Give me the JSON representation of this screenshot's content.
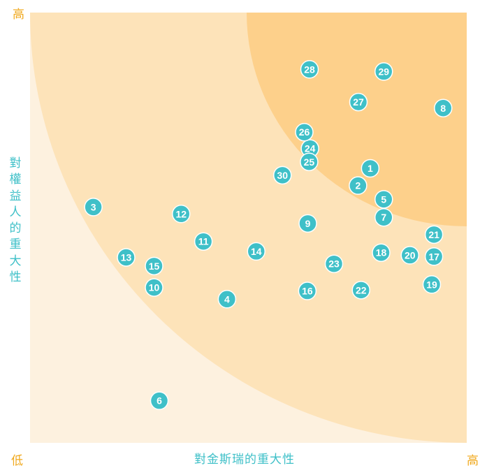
{
  "chart_data": {
    "type": "scatter",
    "xlabel": "對金斯瑞的重大性",
    "ylabel": "對權益人的重大性",
    "x_low_label": "低",
    "x_high_label": "高",
    "y_high_label": "高",
    "xlim": [
      0,
      100
    ],
    "ylim": [
      0,
      100
    ],
    "grid": false,
    "colors": {
      "zone_low": "#fdf1df",
      "zone_mid": "#fde3b9",
      "zone_high": "#fdd08b",
      "point": "#3fc0c8",
      "point_text": "#ffffff",
      "axis_end": "#f0a81c",
      "axis_label": "#3fc0c8"
    },
    "points": [
      {
        "label": "1",
        "x": 77.9,
        "y": 63.8
      },
      {
        "label": "2",
        "x": 75.1,
        "y": 59.8
      },
      {
        "label": "3",
        "x": 14.5,
        "y": 54.8
      },
      {
        "label": "4",
        "x": 45.1,
        "y": 33.4
      },
      {
        "label": "5",
        "x": 81.0,
        "y": 56.6
      },
      {
        "label": "6",
        "x": 29.6,
        "y": 9.8
      },
      {
        "label": "7",
        "x": 81.0,
        "y": 52.4
      },
      {
        "label": "8",
        "x": 94.6,
        "y": 77.8
      },
      {
        "label": "9",
        "x": 63.6,
        "y": 51.0
      },
      {
        "label": "10",
        "x": 28.4,
        "y": 36.1
      },
      {
        "label": "11",
        "x": 39.7,
        "y": 46.8
      },
      {
        "label": "12",
        "x": 34.6,
        "y": 53.2
      },
      {
        "label": "13",
        "x": 22.0,
        "y": 43.1
      },
      {
        "label": "14",
        "x": 51.8,
        "y": 44.5
      },
      {
        "label": "15",
        "x": 28.4,
        "y": 41.1
      },
      {
        "label": "16",
        "x": 63.5,
        "y": 35.3
      },
      {
        "label": "17",
        "x": 92.5,
        "y": 43.3
      },
      {
        "label": "18",
        "x": 80.4,
        "y": 44.2
      },
      {
        "label": "19",
        "x": 92.0,
        "y": 36.8
      },
      {
        "label": "20",
        "x": 87.0,
        "y": 43.6
      },
      {
        "label": "21",
        "x": 92.5,
        "y": 48.4
      },
      {
        "label": "22",
        "x": 75.8,
        "y": 35.5
      },
      {
        "label": "23",
        "x": 69.6,
        "y": 41.6
      },
      {
        "label": "24",
        "x": 64.1,
        "y": 68.4
      },
      {
        "label": "25",
        "x": 63.9,
        "y": 65.3
      },
      {
        "label": "26",
        "x": 62.8,
        "y": 72.2
      },
      {
        "label": "27",
        "x": 75.2,
        "y": 79.2
      },
      {
        "label": "28",
        "x": 64.0,
        "y": 86.8
      },
      {
        "label": "29",
        "x": 81.0,
        "y": 86.3
      },
      {
        "label": "30",
        "x": 57.8,
        "y": 62.2
      }
    ]
  }
}
